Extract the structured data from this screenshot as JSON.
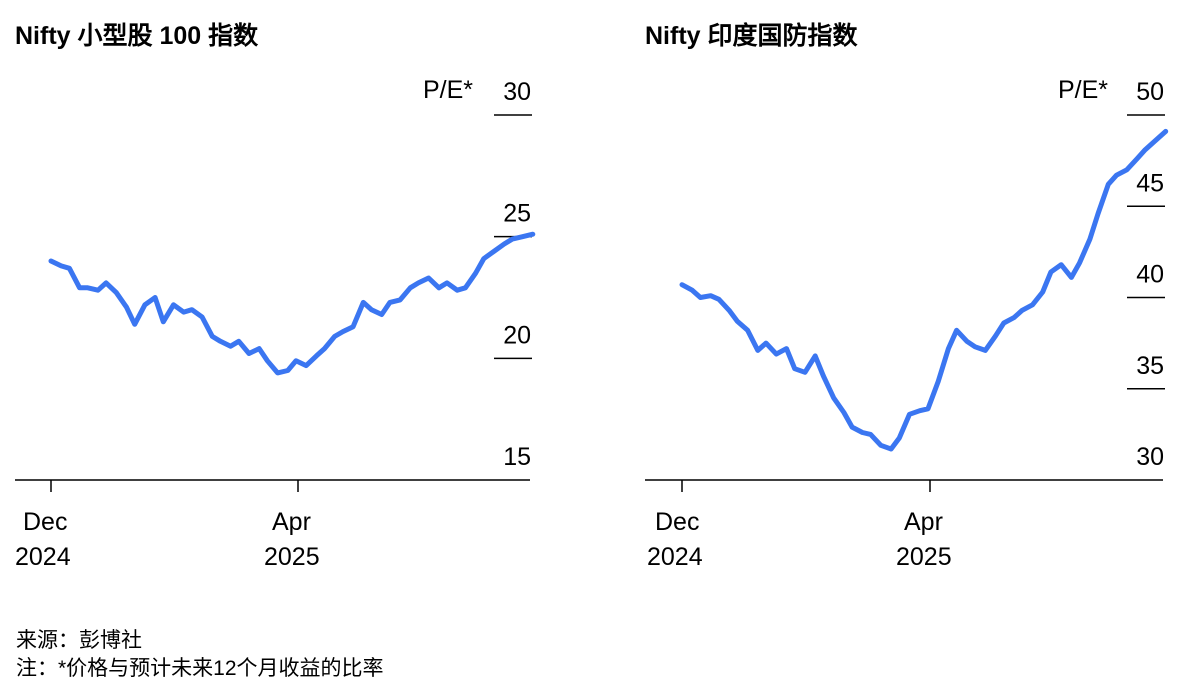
{
  "chart_data": [
    {
      "type": "line",
      "title": "Nifty 小型股 100 指数",
      "unit_label": "P/E*",
      "ylim": [
        15,
        30
      ],
      "yticks": [
        15,
        20,
        25,
        30
      ],
      "xticks": [
        {
          "date": "2024-12-01",
          "label_line1": "Dec",
          "label_line2": "2024"
        },
        {
          "date": "2025-04-01",
          "label_line1": "Apr",
          "label_line2": "2025"
        }
      ],
      "xrange": [
        "2024-11-20",
        "2025-08-20"
      ],
      "color": "#3b76f1",
      "series": [
        {
          "name": "",
          "x": [
            "2024-12-01",
            "2024-12-06",
            "2024-12-10",
            "2024-12-15",
            "2024-12-19",
            "2024-12-24",
            "2024-12-28",
            "2025-01-02",
            "2025-01-07",
            "2025-01-11",
            "2025-01-16",
            "2025-01-21",
            "2025-01-25",
            "2025-01-30",
            "2025-02-04",
            "2025-02-08",
            "2025-02-13",
            "2025-02-18",
            "2025-02-22",
            "2025-02-27",
            "2025-03-03",
            "2025-03-08",
            "2025-03-13",
            "2025-03-17",
            "2025-03-22",
            "2025-03-27",
            "2025-03-31",
            "2025-04-05",
            "2025-04-10",
            "2025-04-14",
            "2025-04-19",
            "2025-04-23",
            "2025-04-28",
            "2025-05-03",
            "2025-05-07",
            "2025-05-12",
            "2025-05-16",
            "2025-05-21",
            "2025-05-26",
            "2025-05-30",
            "2025-06-04",
            "2025-06-09",
            "2025-06-13",
            "2025-06-18",
            "2025-06-22",
            "2025-06-27",
            "2025-07-01",
            "2025-07-06",
            "2025-07-11",
            "2025-07-15",
            "2025-07-20",
            "2025-07-25"
          ],
          "values": [
            24.0,
            23.8,
            23.7,
            22.9,
            22.9,
            22.8,
            23.1,
            22.7,
            22.1,
            21.4,
            22.2,
            22.5,
            21.5,
            22.2,
            21.9,
            22.0,
            21.7,
            20.9,
            20.7,
            20.5,
            20.7,
            20.2,
            20.4,
            19.9,
            19.4,
            19.5,
            19.9,
            19.7,
            20.1,
            20.4,
            20.9,
            21.1,
            21.3,
            22.3,
            22.0,
            21.8,
            22.3,
            22.4,
            22.9,
            23.1,
            23.3,
            22.9,
            23.1,
            22.8,
            22.9,
            23.5,
            24.1,
            24.4,
            24.7,
            24.9,
            25.0,
            25.1
          ]
        }
      ]
    },
    {
      "type": "line",
      "title": "Nifty 印度国防指数",
      "unit_label": "P/E*",
      "ylim": [
        30,
        50
      ],
      "yticks": [
        30,
        35,
        40,
        45,
        50
      ],
      "xticks": [
        {
          "date": "2024-12-01",
          "label_line1": "Dec",
          "label_line2": "2024"
        },
        {
          "date": "2025-04-01",
          "label_line1": "Apr",
          "label_line2": "2025"
        }
      ],
      "xrange": [
        "2024-11-20",
        "2025-08-20"
      ],
      "color": "#3b76f1",
      "series": [
        {
          "name": "",
          "x": [
            "2024-12-01",
            "2024-12-06",
            "2024-12-10",
            "2024-12-15",
            "2024-12-19",
            "2024-12-24",
            "2024-12-28",
            "2025-01-02",
            "2025-01-07",
            "2025-01-11",
            "2025-01-16",
            "2025-01-21",
            "2025-01-25",
            "2025-01-30",
            "2025-02-04",
            "2025-02-08",
            "2025-02-13",
            "2025-02-18",
            "2025-02-22",
            "2025-02-27",
            "2025-03-03",
            "2025-03-08",
            "2025-03-13",
            "2025-03-17",
            "2025-03-22",
            "2025-03-27",
            "2025-03-31",
            "2025-04-05",
            "2025-04-10",
            "2025-04-14",
            "2025-04-19",
            "2025-04-23",
            "2025-04-28",
            "2025-05-03",
            "2025-05-07",
            "2025-05-12",
            "2025-05-16",
            "2025-05-21",
            "2025-05-26",
            "2025-05-30",
            "2025-06-04",
            "2025-06-09",
            "2025-06-13",
            "2025-06-18",
            "2025-06-22",
            "2025-06-27",
            "2025-07-01",
            "2025-07-06",
            "2025-07-11",
            "2025-07-15",
            "2025-07-20",
            "2025-07-25"
          ],
          "values": [
            40.7,
            40.4,
            40.0,
            40.1,
            39.9,
            39.3,
            38.7,
            38.2,
            37.1,
            37.5,
            36.9,
            37.2,
            36.1,
            35.9,
            36.8,
            35.7,
            34.5,
            33.7,
            32.9,
            32.6,
            32.5,
            31.9,
            31.7,
            32.3,
            33.6,
            33.8,
            33.9,
            35.4,
            37.2,
            38.2,
            37.6,
            37.3,
            37.1,
            37.9,
            38.6,
            38.9,
            39.3,
            39.6,
            40.3,
            41.4,
            41.8,
            41.1,
            41.9,
            43.2,
            44.6,
            46.2,
            46.7,
            47.0,
            47.6,
            48.1,
            48.6,
            49.1
          ]
        }
      ]
    }
  ],
  "footer": {
    "source": "来源：彭博社",
    "note": "注：*价格与预计未来12个月收益的比率"
  }
}
